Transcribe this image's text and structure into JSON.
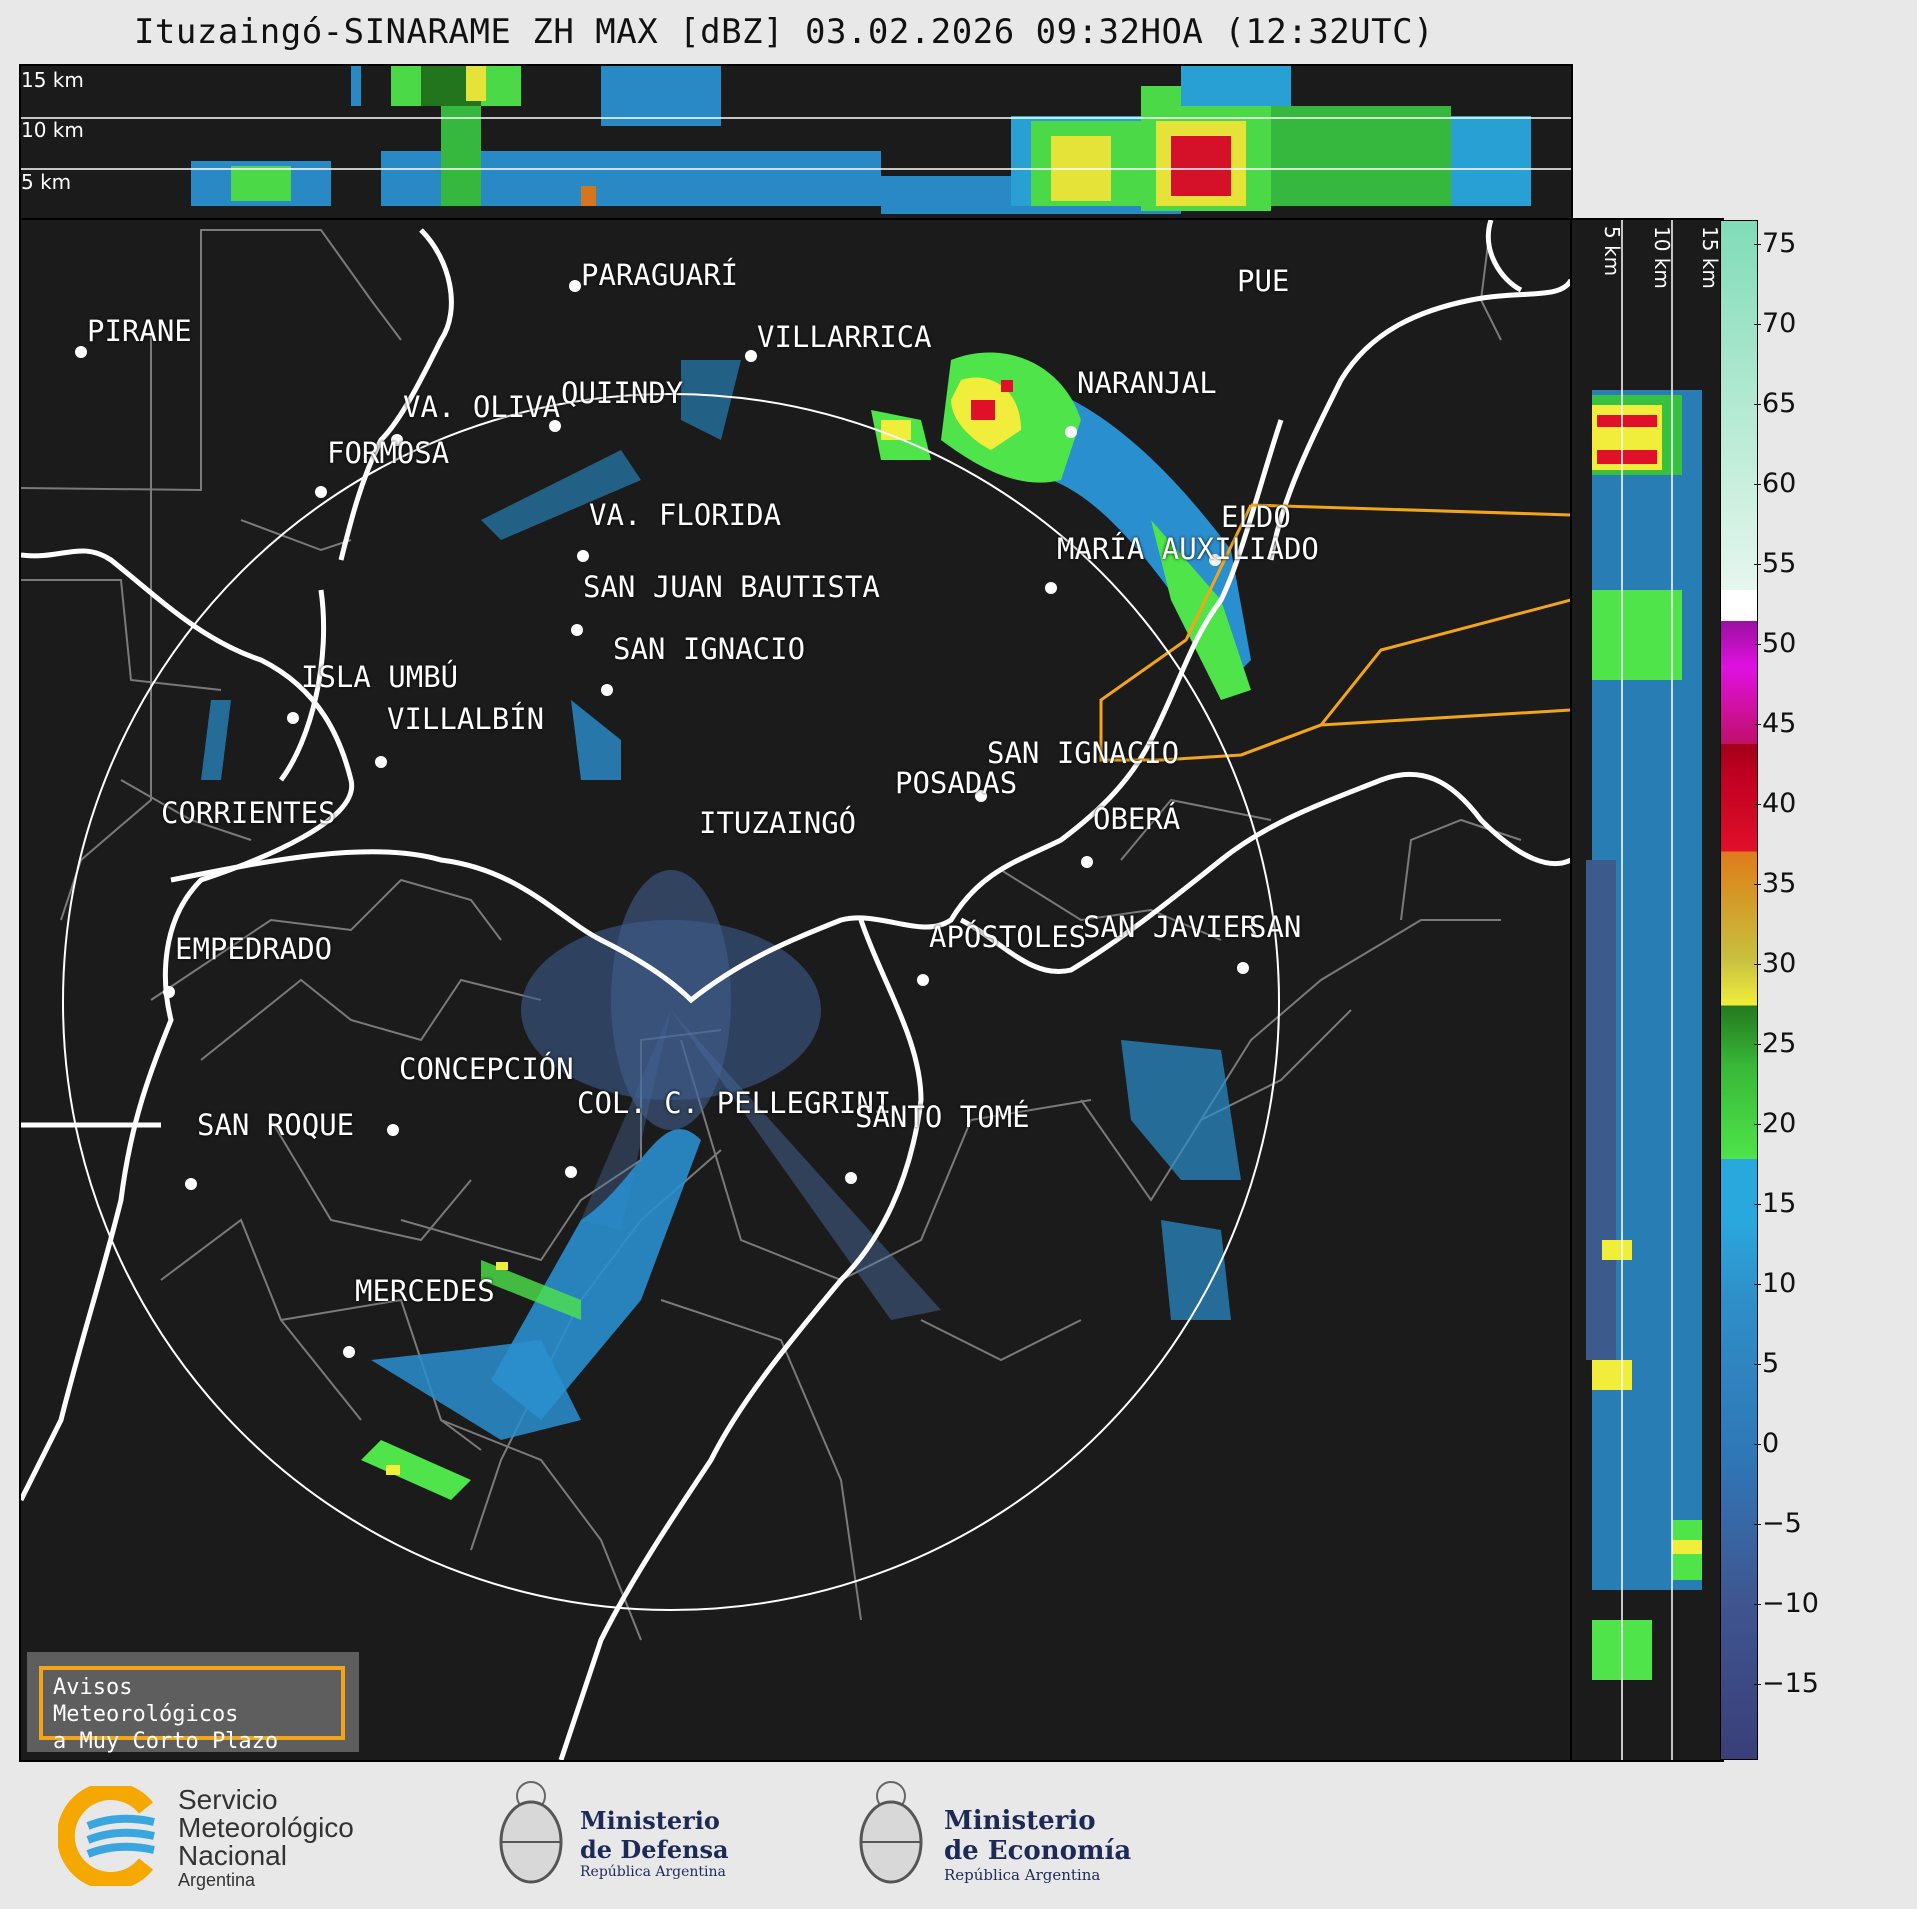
{
  "title": "Ituzaingó-SINARAME ZH MAX [dBZ] 03.02.2026 09:32HOA (12:32UTC)",
  "top_panel": {
    "labels": [
      "15 km",
      "10 km",
      "5 km"
    ]
  },
  "side_panel": {
    "labels": [
      "5 km",
      "10 km",
      "15 km"
    ]
  },
  "colorbar": {
    "ticks": [
      "75",
      "70",
      "65",
      "60",
      "55",
      "50",
      "45",
      "40",
      "35",
      "30",
      "25",
      "20",
      "15",
      "10",
      "5",
      "0",
      "−5",
      "−10",
      "−15"
    ],
    "range": [
      -20,
      77
    ],
    "colors": {
      "low": "#3a3f78",
      "blue_mid": "#2f8fc8",
      "blue_hi": "#29a8de",
      "green_lo": "#4ee44a",
      "green_hi": "#247a1e",
      "yellow": "#f0ee3a",
      "orange": "#e07a1e",
      "red": "#e0102a",
      "darkred": "#a00018",
      "magenta": "#e010e0",
      "purple": "#9a10a0",
      "white": "#ffffff",
      "mint": "#80dcb8"
    }
  },
  "cities": [
    {
      "name": "PARAGUARÍ"
    },
    {
      "name": "PIRANE"
    },
    {
      "name": "VILLARRICA"
    },
    {
      "name": "QUIINDY"
    },
    {
      "name": "VA. OLIVA"
    },
    {
      "name": "NARANJAL"
    },
    {
      "name": "FORMOSA"
    },
    {
      "name": "PUE"
    },
    {
      "name": "VA. FLORIDA"
    },
    {
      "name": "ELDO"
    },
    {
      "name": "MARÍA AUXILIADO"
    },
    {
      "name": "SAN JUAN BAUTISTA"
    },
    {
      "name": "SAN IGNACIO"
    },
    {
      "name": "ISLA UMBÚ"
    },
    {
      "name": "VILLALBÍN"
    },
    {
      "name": "SAN IGNACIO"
    },
    {
      "name": "POSADAS"
    },
    {
      "name": "CORRIENTES"
    },
    {
      "name": "OBERÁ"
    },
    {
      "name": "ITUZAINGÓ"
    },
    {
      "name": "APÓSTOLES"
    },
    {
      "name": "SAN JAVIER"
    },
    {
      "name": "SAN"
    },
    {
      "name": "EMPEDRADO"
    },
    {
      "name": "CONCEPCIÓN"
    },
    {
      "name": "COL. C. PELLEGRINI"
    },
    {
      "name": "SAN ROQUE"
    },
    {
      "name": "SANTO TOMÉ"
    },
    {
      "name": "MERCEDES"
    }
  ],
  "notice": {
    "line1": "Avisos Meteorológicos",
    "line2": "a Muy Corto Plazo"
  },
  "logos": {
    "smn": {
      "line1": "Servicio",
      "line2": "Meteorológico",
      "line3": "Nacional",
      "line4": "Argentina"
    },
    "defensa": {
      "line1": "Ministerio",
      "line2": "de Defensa",
      "line3": "República Argentina"
    },
    "economia": {
      "line1": "Ministerio",
      "line2": "de Economía",
      "line3": "República Argentina"
    }
  }
}
